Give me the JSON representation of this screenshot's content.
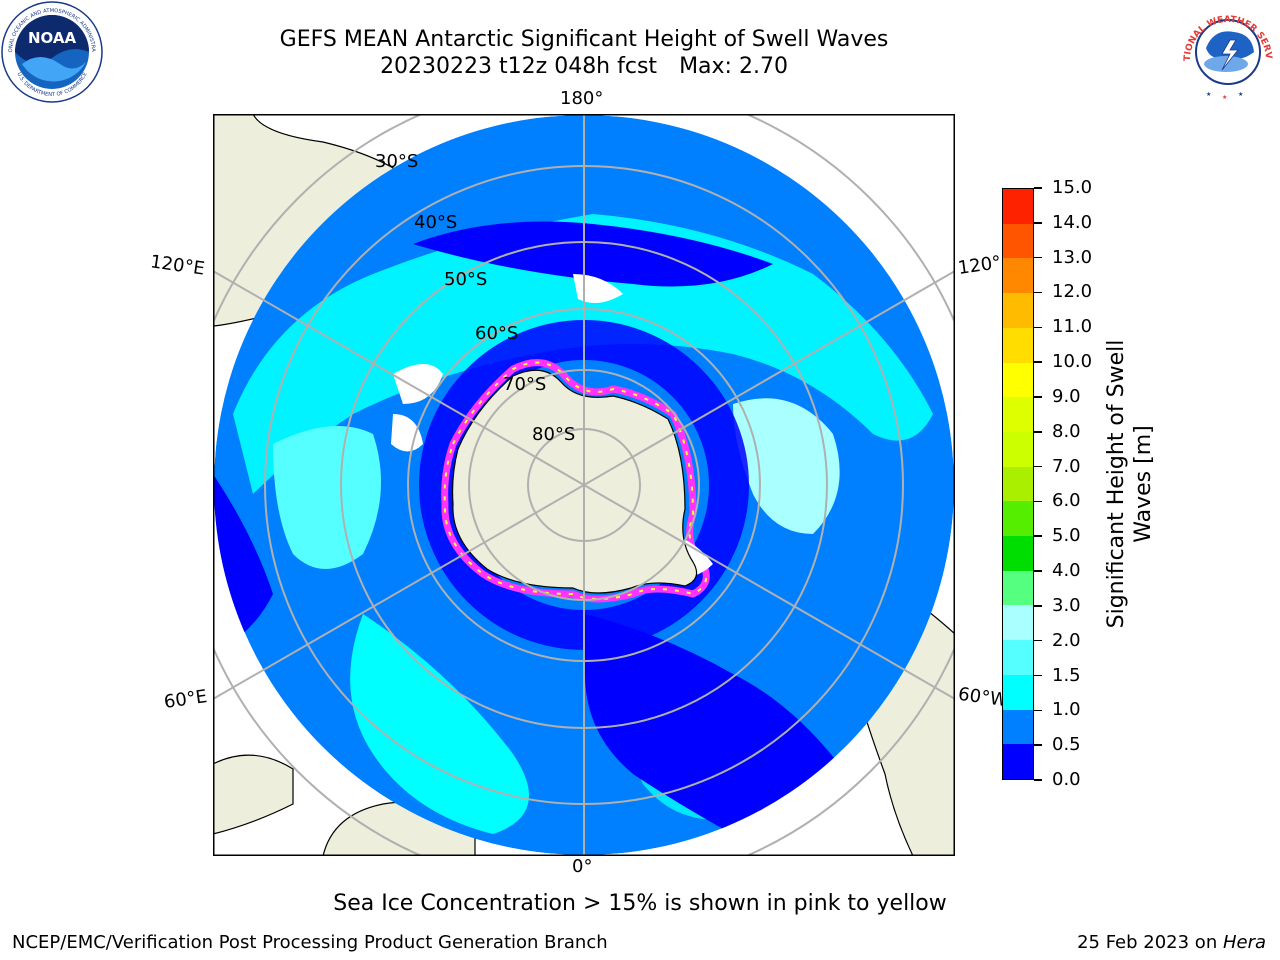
{
  "title": {
    "line1": "GEFS MEAN Antarctic Significant Height of Swell Waves",
    "line2_date": "20230223 t12z 048h fcst",
    "line2_max": "Max: 2.70"
  },
  "logos": {
    "noaa_text": "NOAA",
    "noaa_ring_text": "NATIONAL OCEANIC AND ATMOSPHERIC ADMINISTRATION",
    "noaa_ring_bottom": "U.S. DEPARTMENT OF COMMERCE",
    "nws_ring_text": "NATIONAL WEATHER SERVICE"
  },
  "map": {
    "projection": "south-polar-stereographic",
    "longitude_labels": {
      "top": "180°",
      "bottom": "0°",
      "upper_left": "120°E",
      "lower_left": "60°E",
      "upper_right": "120°",
      "lower_right": "60°W"
    },
    "latitude_labels": [
      "30°S",
      "40°S",
      "50°S",
      "60°S",
      "70°S",
      "80°S"
    ],
    "colors": {
      "land": "#eeeedc",
      "grid": "#b0b0b0",
      "ice_low": "#ff33ff",
      "ice_high": "#ffff33"
    }
  },
  "colorbar": {
    "title_line1": "Significant Height of Swell",
    "title_line2": "Waves [m]",
    "labels": [
      "0.0",
      "0.5",
      "1.0",
      "1.5",
      "2.0",
      "3.0",
      "4.0",
      "5.0",
      "6.0",
      "7.0",
      "8.0",
      "9.0",
      "10.0",
      "11.0",
      "12.0",
      "13.0",
      "14.0",
      "15.0"
    ],
    "colors": [
      "#0000ff",
      "#0080ff",
      "#00ffff",
      "#55ffff",
      "#aaffff",
      "#55ff80",
      "#00dd00",
      "#55ee00",
      "#aaee00",
      "#ccff00",
      "#ddff00",
      "#ffff00",
      "#ffdd00",
      "#ffbb00",
      "#ff8800",
      "#ff5500",
      "#ff2200",
      "#ff0000"
    ]
  },
  "footnote": "Sea Ice Concentration > 15% is shown in pink to yellow",
  "credit": "NCEP/EMC/Verification Post Processing Product Generation Branch",
  "date": {
    "text": "25 Feb 2023 on ",
    "machine": "Hera"
  }
}
